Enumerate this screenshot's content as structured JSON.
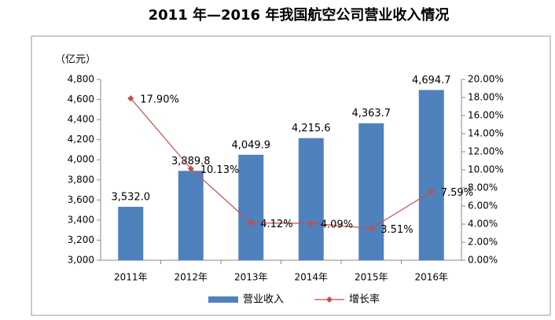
{
  "chart_data": {
    "type": "bar",
    "title": "2011 年—2016 年我国航空公司营业收入情况",
    "y_label": "（亿元）",
    "categories": [
      "2011年",
      "2012年",
      "2013年",
      "2014年",
      "2015年",
      "2016年"
    ],
    "series": [
      {
        "name": "营业收入",
        "color": "#4f81bd",
        "values": [
          3532.0,
          3889.8,
          4049.9,
          4215.6,
          4363.7,
          4694.7
        ],
        "value_labels": [
          "3,532.0",
          "3,889.8",
          "4,049.9",
          "4,215.6",
          "4,363.7",
          "4,694.7"
        ]
      },
      {
        "name": "增长率",
        "type": "line",
        "axis": "y2",
        "color": "#c0504d",
        "values": [
          17.9,
          10.13,
          4.12,
          4.09,
          3.51,
          7.59
        ],
        "value_labels": [
          "17.90%",
          "10.13%",
          "4.12%",
          "4.09%",
          "3.51%",
          "7.59%"
        ]
      }
    ],
    "ylim": [
      3000,
      4800
    ],
    "yticks": [
      {
        "value": 3000,
        "label": "3,000"
      },
      {
        "value": 3200,
        "label": "3,200"
      },
      {
        "value": 3400,
        "label": "3,400"
      },
      {
        "value": 3600,
        "label": "3,600"
      },
      {
        "value": 3800,
        "label": "3,800"
      },
      {
        "value": 4000,
        "label": "4,000"
      },
      {
        "value": 4200,
        "label": "4,200"
      },
      {
        "value": 4400,
        "label": "4,400"
      },
      {
        "value": 4600,
        "label": "4,600"
      },
      {
        "value": 4800,
        "label": "4,800"
      }
    ],
    "y2lim": [
      0,
      20
    ],
    "y2ticks": [
      {
        "value": 0,
        "label": "0.00%"
      },
      {
        "value": 2,
        "label": "2.00%"
      },
      {
        "value": 4,
        "label": "4.00%"
      },
      {
        "value": 6,
        "label": "6.00%"
      },
      {
        "value": 8,
        "label": "8.00%"
      },
      {
        "value": 10,
        "label": "10.00%"
      },
      {
        "value": 12,
        "label": "12.00%"
      },
      {
        "value": 14,
        "label": "14.00%"
      },
      {
        "value": 16,
        "label": "16.00%"
      },
      {
        "value": 18,
        "label": "18.00%"
      },
      {
        "value": 20,
        "label": "20.00%"
      }
    ],
    "grid": false,
    "legend": "bottom"
  }
}
